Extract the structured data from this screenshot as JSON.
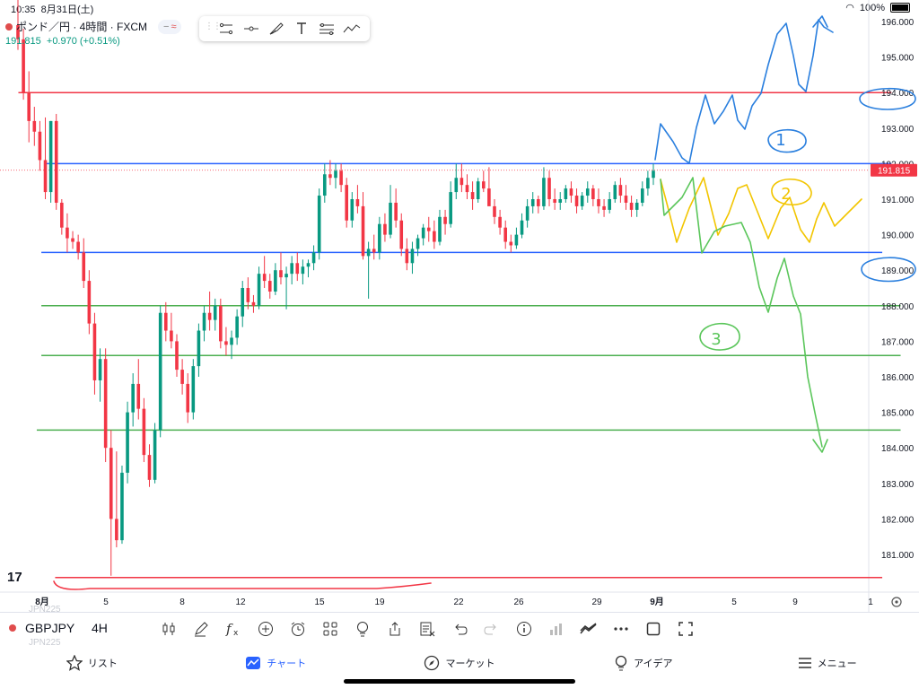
{
  "status": {
    "time": "10:35",
    "date": "8月31日(土)",
    "battery": "100%"
  },
  "legend": {
    "title": "ポンド／円 · 4時間 · FXCM",
    "price": "191.815",
    "change": "+0.970 (+0.51%)",
    "minus": "−",
    "approx": "≈"
  },
  "draw_tools": [
    "trend-line-icon",
    "horizontal-line-icon",
    "brush-icon",
    "text-icon",
    "channel-icon",
    "path-icon"
  ],
  "price_axis": {
    "labels": [
      "196.000",
      "195.000",
      "194.000",
      "193.000",
      "192.000",
      "191.000",
      "190.000",
      "189.000",
      "188.000",
      "187.000",
      "186.000",
      "185.000",
      "184.000",
      "183.000",
      "182.000",
      "181.000"
    ],
    "current": "191.815"
  },
  "time_axis": {
    "labels": [
      "8月",
      "5",
      "8",
      "12",
      "15",
      "19",
      "22",
      "26",
      "29",
      "9月",
      "5",
      "9",
      "1"
    ]
  },
  "annotations": [
    "1",
    "2",
    "3"
  ],
  "bottom": {
    "symbol": "GBPJPY",
    "timeframe": "4H",
    "ghost": "JPN225"
  },
  "tabs": [
    "リスト",
    "チャート",
    "マーケット",
    "アイデア",
    "メニュー"
  ],
  "colors": {
    "up": "#089981",
    "down": "#f23645",
    "red_line": "#f23645",
    "blue_line": "#2962ff",
    "green_line": "#4caf50",
    "blue_pen": "#2a7fde",
    "yellow_pen": "#f2c500",
    "green_pen": "#5bc65b",
    "active_tab": "#2962ff"
  },
  "chart_data": {
    "type": "candlestick",
    "ylim": [
      180.3,
      196.6
    ],
    "series": [
      {
        "name": "",
        "values": [
          [
            195.9,
            196.8,
            195.2,
            195.5
          ],
          [
            195.5,
            195.8,
            193.8,
            194.0
          ],
          [
            194.0,
            194.6,
            192.6,
            193.2
          ],
          [
            193.2,
            193.6,
            192.5,
            192.9
          ],
          [
            192.9,
            193.2,
            191.8,
            192.1
          ],
          [
            192.1,
            193.3,
            191.0,
            191.2
          ],
          [
            191.2,
            193.2,
            190.9,
            193.2
          ],
          [
            193.2,
            193.4,
            190.7,
            190.9
          ],
          [
            190.9,
            191.0,
            190.0,
            190.2
          ],
          [
            190.2,
            190.6,
            189.5,
            189.9
          ],
          [
            189.9,
            190.1,
            189.6,
            189.8
          ],
          [
            189.8,
            190.0,
            189.3,
            189.5
          ],
          [
            189.5,
            189.9,
            188.5,
            188.7
          ],
          [
            188.7,
            189.0,
            187.2,
            187.5
          ],
          [
            187.5,
            187.8,
            185.5,
            185.9
          ],
          [
            185.9,
            186.8,
            185.3,
            186.5
          ],
          [
            186.5,
            186.8,
            183.6,
            184.0
          ],
          [
            184.0,
            184.5,
            180.4,
            182.0
          ],
          [
            182.0,
            183.9,
            181.2,
            181.4
          ],
          [
            181.4,
            183.5,
            181.3,
            183.3
          ],
          [
            183.3,
            185.3,
            183.0,
            185.0
          ],
          [
            185.0,
            186.1,
            184.6,
            185.8
          ],
          [
            185.8,
            186.5,
            184.8,
            185.1
          ],
          [
            185.1,
            185.4,
            183.6,
            183.8
          ],
          [
            183.8,
            184.1,
            182.9,
            183.1
          ],
          [
            183.1,
            184.7,
            183.0,
            184.5
          ],
          [
            184.5,
            188.0,
            184.3,
            187.8
          ],
          [
            187.8,
            188.1,
            187.0,
            187.3
          ],
          [
            187.3,
            187.8,
            186.8,
            187.0
          ],
          [
            187.0,
            187.2,
            186.0,
            186.2
          ],
          [
            186.2,
            186.5,
            185.5,
            185.8
          ],
          [
            185.8,
            186.1,
            184.7,
            185.0
          ],
          [
            185.0,
            186.5,
            184.8,
            186.3
          ],
          [
            186.3,
            187.5,
            186.0,
            187.3
          ],
          [
            187.3,
            188.0,
            187.0,
            187.8
          ],
          [
            187.8,
            188.4,
            187.3,
            187.6
          ],
          [
            187.6,
            188.2,
            187.3,
            188.0
          ],
          [
            188.0,
            188.2,
            186.8,
            187.0
          ],
          [
            187.0,
            187.4,
            186.6,
            186.9
          ],
          [
            186.9,
            187.3,
            186.5,
            187.1
          ],
          [
            187.1,
            187.9,
            186.9,
            187.7
          ],
          [
            187.7,
            188.7,
            187.4,
            188.5
          ],
          [
            188.5,
            188.8,
            187.9,
            188.1
          ],
          [
            188.1,
            188.3,
            187.8,
            188.0
          ],
          [
            188.0,
            189.1,
            187.9,
            188.9
          ],
          [
            188.9,
            189.4,
            188.5,
            188.7
          ],
          [
            188.7,
            188.9,
            188.2,
            188.4
          ],
          [
            188.4,
            189.2,
            188.3,
            189.0
          ],
          [
            189.0,
            189.5,
            188.6,
            188.8
          ],
          [
            188.8,
            189.1,
            187.9,
            188.9
          ],
          [
            188.9,
            189.4,
            188.6,
            189.2
          ],
          [
            189.2,
            189.5,
            188.7,
            188.9
          ],
          [
            188.9,
            189.3,
            188.6,
            189.1
          ],
          [
            189.1,
            189.3,
            188.8,
            189.2
          ],
          [
            189.2,
            189.7,
            189.0,
            189.5
          ],
          [
            189.5,
            191.3,
            189.3,
            191.1
          ],
          [
            191.1,
            192.0,
            190.9,
            191.7
          ],
          [
            191.7,
            192.1,
            191.4,
            191.6
          ],
          [
            191.6,
            192.0,
            191.3,
            191.8
          ],
          [
            191.8,
            192.0,
            191.2,
            191.4
          ],
          [
            191.4,
            191.6,
            190.2,
            190.4
          ],
          [
            190.4,
            191.2,
            190.2,
            191.0
          ],
          [
            191.0,
            191.4,
            190.6,
            190.8
          ],
          [
            190.8,
            191.2,
            189.3,
            189.4
          ],
          [
            189.4,
            189.8,
            188.2,
            189.6
          ],
          [
            189.6,
            190.0,
            189.3,
            189.5
          ],
          [
            189.5,
            190.5,
            189.3,
            190.3
          ],
          [
            190.3,
            190.6,
            189.8,
            190.0
          ],
          [
            190.0,
            191.4,
            189.9,
            190.9
          ],
          [
            190.9,
            191.3,
            190.2,
            190.4
          ],
          [
            190.4,
            190.6,
            189.4,
            189.6
          ],
          [
            189.6,
            189.9,
            189.0,
            189.2
          ],
          [
            189.2,
            189.8,
            188.9,
            189.6
          ],
          [
            189.6,
            190.0,
            189.4,
            189.9
          ],
          [
            189.9,
            190.3,
            189.7,
            190.2
          ],
          [
            190.2,
            190.5,
            189.8,
            190.1
          ],
          [
            190.1,
            190.4,
            189.6,
            189.8
          ],
          [
            189.8,
            190.7,
            189.7,
            190.5
          ],
          [
            190.5,
            190.7,
            190.0,
            190.3
          ],
          [
            190.3,
            191.5,
            190.2,
            191.2
          ],
          [
            191.2,
            192.0,
            191.0,
            191.6
          ],
          [
            191.6,
            192.0,
            191.2,
            191.4
          ],
          [
            191.4,
            191.7,
            191.0,
            191.2
          ],
          [
            191.2,
            191.5,
            190.7,
            191.0
          ],
          [
            191.0,
            191.6,
            190.9,
            191.5
          ],
          [
            191.5,
            191.8,
            191.2,
            191.3
          ],
          [
            191.3,
            191.9,
            191.0,
            190.8
          ],
          [
            190.8,
            191.0,
            190.3,
            190.5
          ],
          [
            190.5,
            190.7,
            190.0,
            190.2
          ],
          [
            190.2,
            190.4,
            189.6,
            189.8
          ],
          [
            189.8,
            190.0,
            189.5,
            189.7
          ],
          [
            189.7,
            190.2,
            189.6,
            190.0
          ],
          [
            190.0,
            190.6,
            189.9,
            190.4
          ],
          [
            190.4,
            191.0,
            190.2,
            190.8
          ],
          [
            190.8,
            191.2,
            190.6,
            191.0
          ],
          [
            191.0,
            191.1,
            190.6,
            190.8
          ],
          [
            190.8,
            191.9,
            190.7,
            191.6
          ],
          [
            191.6,
            191.8,
            190.8,
            191.0
          ],
          [
            191.0,
            191.3,
            190.7,
            190.9
          ],
          [
            190.9,
            191.2,
            190.7,
            191.0
          ],
          [
            191.0,
            191.4,
            190.9,
            191.3
          ],
          [
            191.3,
            191.5,
            190.9,
            191.1
          ],
          [
            191.1,
            191.3,
            190.6,
            190.8
          ],
          [
            190.8,
            191.2,
            190.7,
            191.1
          ],
          [
            191.1,
            191.5,
            190.9,
            191.3
          ],
          [
            191.3,
            191.4,
            190.8,
            191.0
          ],
          [
            191.0,
            191.3,
            190.6,
            190.8
          ],
          [
            190.8,
            191.0,
            190.5,
            190.7
          ],
          [
            190.7,
            191.2,
            190.6,
            191.0
          ],
          [
            191.0,
            191.5,
            190.9,
            191.4
          ],
          [
            191.4,
            191.6,
            190.9,
            191.1
          ],
          [
            191.1,
            191.4,
            190.7,
            190.9
          ],
          [
            190.9,
            191.1,
            190.5,
            190.7
          ],
          [
            190.7,
            191.0,
            190.5,
            190.9
          ],
          [
            190.9,
            191.5,
            190.8,
            191.3
          ],
          [
            191.3,
            191.8,
            191.1,
            191.6
          ],
          [
            191.6,
            192.0,
            191.4,
            191.8
          ]
        ]
      }
    ],
    "levels": [
      {
        "price": 194.0,
        "color": "#f23645",
        "x1": 0.02,
        "x2": 0.97
      },
      {
        "price": 192.0,
        "color": "#2962ff",
        "x1": 0.05,
        "x2": 0.97
      },
      {
        "price": 189.5,
        "color": "#2962ff",
        "x1": 0.045,
        "x2": 0.96
      },
      {
        "price": 188.0,
        "color": "#4caf50",
        "x1": 0.045,
        "x2": 0.98
      },
      {
        "price": 186.6,
        "color": "#4caf50",
        "x1": 0.045,
        "x2": 0.98
      },
      {
        "price": 184.5,
        "color": "#4caf50",
        "x1": 0.04,
        "x2": 0.98
      },
      {
        "price": 180.35,
        "color": "#f23645",
        "x1": 0.06,
        "x2": 0.96
      }
    ]
  }
}
